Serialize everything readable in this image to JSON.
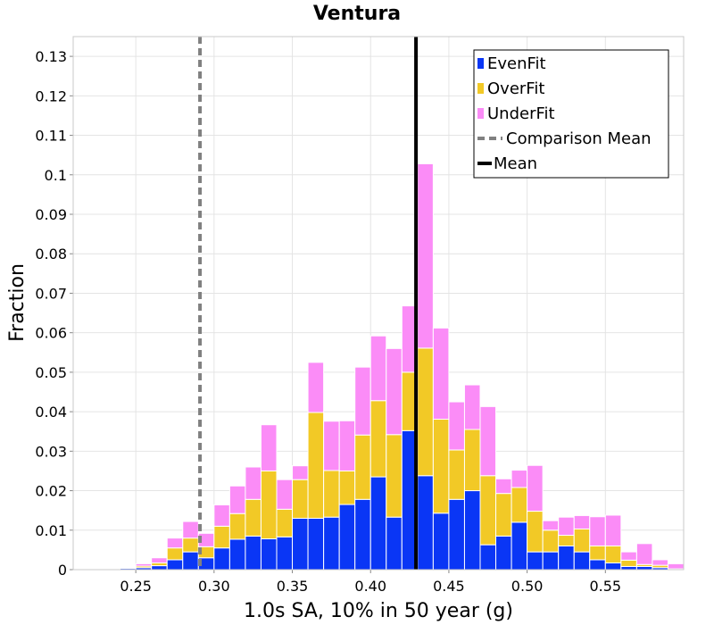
{
  "chart_data": {
    "type": "bar",
    "stacked": true,
    "title": "Ventura",
    "xlabel": "1.0s SA, 10% in 50 year (g)",
    "ylabel": "Fraction",
    "xlim": [
      0.21,
      0.6
    ],
    "ylim": [
      0,
      0.135
    ],
    "bin_width": 0.01,
    "grid": true,
    "legend_position": "top-right",
    "x_ticks": [
      0.25,
      0.3,
      0.35,
      0.4,
      0.45,
      0.5,
      0.55
    ],
    "x_tick_labels": [
      "0.25",
      "0.30",
      "0.35",
      "0.40",
      "0.45",
      "0.50",
      "0.55"
    ],
    "y_ticks": [
      0,
      0.01,
      0.02,
      0.03,
      0.04,
      0.05,
      0.06,
      0.07,
      0.08,
      0.09,
      0.1,
      0.11,
      0.12,
      0.13
    ],
    "y_tick_labels": [
      "0",
      "0.01",
      "0.02",
      "0.03",
      "0.04",
      "0.05",
      "0.06",
      "0.07",
      "0.08",
      "0.09",
      "0.1",
      "0.11",
      "0.12",
      "0.13"
    ],
    "bin_starts": [
      0.24,
      0.25,
      0.26,
      0.27,
      0.28,
      0.29,
      0.3,
      0.31,
      0.32,
      0.33,
      0.34,
      0.35,
      0.36,
      0.37,
      0.38,
      0.39,
      0.4,
      0.41,
      0.42,
      0.43,
      0.44,
      0.45,
      0.46,
      0.47,
      0.48,
      0.49,
      0.5,
      0.51,
      0.52,
      0.53,
      0.54,
      0.55,
      0.56,
      0.57,
      0.58,
      0.59
    ],
    "series": [
      {
        "name": "EvenFit",
        "color": "#0a36f5",
        "values": [
          0.0003,
          0.0005,
          0.001,
          0.0025,
          0.0045,
          0.003,
          0.0055,
          0.0077,
          0.0085,
          0.0078,
          0.0083,
          0.013,
          0.013,
          0.0133,
          0.0165,
          0.0178,
          0.0235,
          0.0133,
          0.0352,
          0.0238,
          0.0143,
          0.0178,
          0.02,
          0.0063,
          0.0085,
          0.012,
          0.0045,
          0.0045,
          0.006,
          0.0045,
          0.0025,
          0.0017,
          0.0008,
          0.0008,
          0.0005,
          0
        ]
      },
      {
        "name": "OverFit",
        "color": "#f2c926",
        "values": [
          0,
          0.0004,
          0.0007,
          0.003,
          0.0035,
          0.0028,
          0.0055,
          0.0065,
          0.0093,
          0.0172,
          0.007,
          0.0098,
          0.0268,
          0.0118,
          0.0085,
          0.0163,
          0.0193,
          0.0209,
          0.0148,
          0.0323,
          0.0238,
          0.0125,
          0.0155,
          0.0175,
          0.0108,
          0.0088,
          0.0103,
          0.0055,
          0.0027,
          0.0058,
          0.0035,
          0.0043,
          0.0016,
          0.0005,
          0.0006,
          0.0002
        ]
      },
      {
        "name": "UnderFit",
        "color": "#fb8cf7",
        "values": [
          0,
          0.0006,
          0.0013,
          0.0025,
          0.0042,
          0.0034,
          0.0054,
          0.007,
          0.0082,
          0.0117,
          0.0075,
          0.0035,
          0.0127,
          0.0125,
          0.0127,
          0.0172,
          0.0164,
          0.0218,
          0.0168,
          0.0467,
          0.0231,
          0.0122,
          0.0113,
          0.0175,
          0.0037,
          0.0044,
          0.0116,
          0.0024,
          0.0046,
          0.0034,
          0.0074,
          0.0078,
          0.0021,
          0.0053,
          0.0014,
          0.0013
        ]
      }
    ],
    "reference_lines": [
      {
        "name": "Comparison Mean",
        "x": 0.291,
        "color": "#808080",
        "style": "dashed"
      },
      {
        "name": "Mean",
        "x": 0.429,
        "color": "#000000",
        "style": "solid"
      }
    ],
    "legend": [
      "EvenFit",
      "OverFit",
      "UnderFit",
      "Comparison Mean",
      "Mean"
    ]
  }
}
